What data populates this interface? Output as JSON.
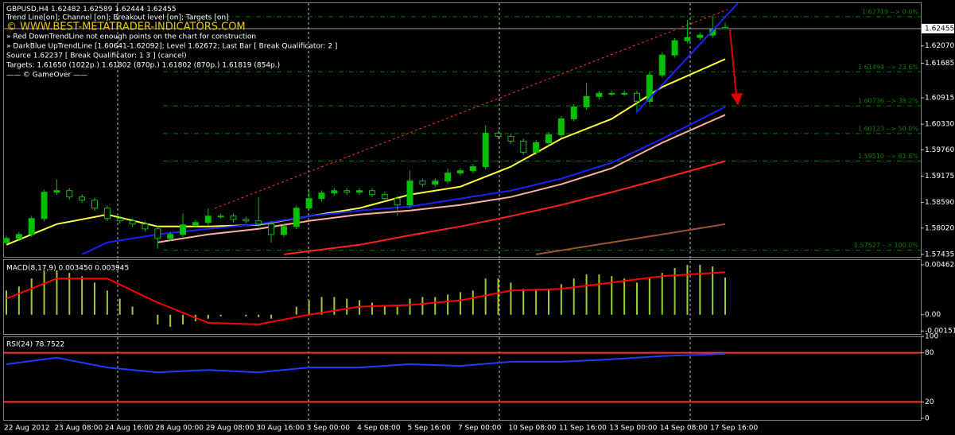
{
  "panel": {
    "lines": [
      "Trend Line[on]; Channel [on]; Breakout level [on]; Targets [on]",
      "» Red DownTrendLine not enough points on the chart for construction",
      "» DarkBlue UpTrendLine [1.60641-1.62092]; Level 1.62672; Last Bar [ Break Qualificator: 2 ]",
      "Source 1.62237 [ Break Qualificator: 1 3 ] (cancel)",
      "Targets: 1.61650 (1022p.) 1.61802 (870p.) 1.61802 (870p.) 1.61819 (854p.)",
      "—— © GameOver ——"
    ],
    "watermark": "© WWW.BEST-METATRADER-INDICATORS.COM"
  },
  "chart_data": [
    {
      "type": "candlestick",
      "title": "GBPUSD,H4",
      "up_color": "#00c000",
      "down_color": "#000000",
      "categories": [
        "22 Aug 2012",
        null,
        null,
        null,
        "23 Aug 08:00",
        null,
        null,
        null,
        "24 Aug 16:00",
        null,
        null,
        null,
        "28 Aug 00:00",
        null,
        null,
        null,
        "29 Aug 08:00",
        null,
        null,
        null,
        "30 Aug 16:00",
        null,
        null,
        null,
        "3 Sep 00:00",
        null,
        null,
        null,
        "4 Sep 08:00",
        null,
        null,
        null,
        "5 Sep 16:00",
        null,
        null,
        null,
        "7 Sep 00:00",
        null,
        null,
        null,
        "10 Sep 08:00",
        null,
        null,
        null,
        "11 Sep 16:00",
        null,
        null,
        null,
        "13 Sep 00:00",
        null,
        null,
        null,
        "14 Sep 08:00",
        null,
        null,
        null,
        "17 Sep 16:00",
        null
      ],
      "open": [
        1.577,
        1.5779,
        1.57878,
        1.58233,
        1.58818,
        1.58853,
        1.58711,
        1.5864,
        1.58463,
        1.58233,
        1.5818,
        1.58109,
        1.58002,
        1.5779,
        1.57878,
        1.58091,
        1.58144,
        1.58286,
        1.58286,
        1.58215,
        1.5818,
        1.58109,
        1.57878,
        1.58055,
        1.58463,
        1.58676,
        1.588,
        1.58853,
        1.58818,
        1.58853,
        1.58765,
        1.58676,
        1.58534,
        1.59066,
        1.58995,
        1.59066,
        1.59243,
        1.59296,
        1.59385,
        1.60129,
        1.60059,
        1.59952,
        1.59704,
        1.59917,
        1.60094,
        1.60449,
        1.60714,
        1.60945,
        1.61016,
        1.61016,
        1.61016,
        1.60839,
        1.61424,
        1.61867,
        1.62186,
        1.62257,
        1.6231,
        1.62482
      ],
      "high": [
        1.5785,
        1.57938,
        1.58293,
        1.58878,
        1.591,
        1.58913,
        1.58771,
        1.587,
        1.58523,
        1.58293,
        1.5824,
        1.58169,
        1.58062,
        1.57938,
        1.5834,
        1.58204,
        1.5846,
        1.58346,
        1.58346,
        1.58275,
        1.587,
        1.58169,
        1.58115,
        1.58523,
        1.589,
        1.5886,
        1.58913,
        1.58913,
        1.58913,
        1.58913,
        1.58825,
        1.58736,
        1.593,
        1.59126,
        1.59126,
        1.5935,
        1.59356,
        1.59445,
        1.603,
        1.60189,
        1.60119,
        1.60012,
        1.59977,
        1.60154,
        1.60509,
        1.60774,
        1.6125,
        1.61076,
        1.61076,
        1.61076,
        1.61076,
        1.61484,
        1.61927,
        1.62246,
        1.6265,
        1.6237,
        1.62719,
        1.62589
      ],
      "low": [
        1.5764,
        1.5773,
        1.57818,
        1.58173,
        1.58758,
        1.58651,
        1.5858,
        1.58403,
        1.58173,
        1.5812,
        1.58049,
        1.57942,
        1.5756,
        1.5773,
        1.57818,
        1.58031,
        1.58084,
        1.58226,
        1.58155,
        1.5812,
        1.58049,
        1.577,
        1.57818,
        1.57995,
        1.58403,
        1.58616,
        1.5874,
        1.58758,
        1.58758,
        1.58705,
        1.58616,
        1.583,
        1.58474,
        1.58935,
        1.58935,
        1.59006,
        1.59183,
        1.59236,
        1.59325,
        1.59999,
        1.59892,
        1.59644,
        1.59644,
        1.59857,
        1.60034,
        1.60389,
        1.60654,
        1.60885,
        1.60956,
        1.60956,
        1.606,
        1.60779,
        1.61364,
        1.61807,
        1.62126,
        1.62197,
        1.6225,
        1.62444
      ],
      "close": [
        1.5779,
        1.57878,
        1.58233,
        1.58818,
        1.58853,
        1.58711,
        1.5864,
        1.58463,
        1.58233,
        1.5818,
        1.58109,
        1.58002,
        1.5779,
        1.57878,
        1.58091,
        1.58144,
        1.58286,
        1.58286,
        1.58215,
        1.5818,
        1.58109,
        1.57878,
        1.58055,
        1.58463,
        1.58676,
        1.588,
        1.58853,
        1.58818,
        1.58853,
        1.58765,
        1.58676,
        1.58534,
        1.59066,
        1.58995,
        1.59066,
        1.59243,
        1.59296,
        1.59385,
        1.60129,
        1.60059,
        1.59952,
        1.59704,
        1.59917,
        1.60094,
        1.60449,
        1.60714,
        1.60945,
        1.61016,
        1.61016,
        1.61016,
        1.60839,
        1.61424,
        1.61867,
        1.62186,
        1.62257,
        1.6231,
        1.62434,
        1.62455
      ],
      "ylim": [
        1.5738,
        1.6302
      ],
      "yticks": [
        {
          "value": 1.6207,
          "label": "1.62070"
        },
        1.61685,
        1.60915,
        {
          "value": 1.6033,
          "label": "1.60330"
        },
        {
          "value": 1.5976,
          "label": "1.59760"
        },
        1.59175,
        {
          "value": 1.5859,
          "label": "1.58590"
        },
        {
          "value": 1.5802,
          "label": "1.58020"
        },
        1.57435
      ],
      "fib_color": "#008000",
      "fib_levels": [
        {
          "value": 1.62719,
          "label": "1.62719 --> 0.0%"
        },
        {
          "value": 1.61494,
          "label": "1.61494 --> 23.6%"
        },
        {
          "value": 1.60736,
          "label": "1.60736 --> 38.2%"
        },
        {
          "value": 1.60123,
          "label": "1.60123 --> 50.0%"
        },
        {
          "value": 1.5951,
          "label": "1.59510 --> 61.8%"
        },
        {
          "value": 1.57527,
          "label": "1.57527 --> 100.0%"
        }
      ],
      "series": [
        {
          "color": "#ffff40",
          "x": [
            0,
            4,
            8,
            12,
            16,
            20,
            24,
            28,
            32,
            36,
            40,
            44,
            48,
            52,
            57
          ],
          "values": [
            1.57648,
            1.58109,
            1.58321,
            1.58055,
            1.58055,
            1.58091,
            1.58286,
            1.58463,
            1.58764,
            1.58942,
            1.59385,
            1.60005,
            1.60448,
            1.61157,
            1.61777
          ]
        },
        {
          "color": "#ffb0a0",
          "x": [
            12,
            16,
            20,
            24,
            28,
            32,
            36,
            40,
            44,
            48,
            52,
            57
          ],
          "values": [
            1.57701,
            1.57878,
            1.58002,
            1.58179,
            1.58321,
            1.5841,
            1.58534,
            1.58711,
            1.58995,
            1.59349,
            1.59917,
            1.60537
          ]
        },
        {
          "color": "#2020ff",
          "x": [
            6,
            8,
            12,
            16,
            20,
            24,
            28,
            32,
            36,
            40,
            44,
            48,
            52,
            57
          ],
          "values": [
            1.57435,
            1.57701,
            1.57878,
            1.58002,
            1.58109,
            1.58286,
            1.5841,
            1.58498,
            1.58675,
            1.58853,
            1.59119,
            1.59473,
            1.60005,
            1.60714
          ]
        },
        {
          "color": "#ff2020",
          "x": [
            22,
            28,
            32,
            36,
            40,
            44,
            48,
            52,
            57
          ],
          "values": [
            1.57435,
            1.57648,
            1.5786,
            1.58055,
            1.58286,
            1.58534,
            1.58818,
            1.59119,
            1.59509
          ]
        },
        {
          "color": "#a0522d",
          "x": [
            42,
            48,
            52,
            57
          ],
          "values": [
            1.57435,
            1.57701,
            1.57878,
            1.58109
          ]
        }
      ]
    },
    {
      "type": "macd",
      "title": "MACD(8,17,9) 0.003450 0.003945",
      "color": "#9acd32",
      "values": [
        0.00224,
        0.00261,
        0.00336,
        0.0041,
        0.0041,
        0.00388,
        0.00358,
        0.00298,
        0.00224,
        0.00149,
        0.00075,
        0,
        -0.0009,
        -0.00112,
        -0.0009,
        -0.0006,
        -0.00037,
        -0.00015,
        0,
        -0.00015,
        -0.00022,
        -0.00037,
        0,
        0.00075,
        0.00134,
        0.00164,
        0.00164,
        0.00149,
        0.00134,
        0.00112,
        0.0009,
        0.00075,
        0.00149,
        0.00164,
        0.00164,
        0.00187,
        0.00209,
        0.00224,
        0.00336,
        0.00336,
        0.00298,
        0.00239,
        0.00224,
        0.00239,
        0.00283,
        0.00336,
        0.00373,
        0.00373,
        0.00358,
        0.00336,
        0.00298,
        0.00336,
        0.00388,
        0.00433,
        0.00462,
        0.00462,
        0.00448,
        0.00345
      ],
      "series": [
        {
          "color": "#ff0000",
          "x": [
            0,
            4,
            8,
            12,
            16,
            20,
            24,
            28,
            32,
            36,
            40,
            44,
            48,
            52,
            57
          ],
          "values": [
            0.00149,
            0.00336,
            0.00336,
            0.00112,
            -0.00075,
            -0.0009,
            0,
            0.00075,
            0.0009,
            0.00134,
            0.00224,
            0.00239,
            0.00298,
            0.00358,
            0.003945
          ]
        }
      ],
      "ylim": [
        -0.00179,
        0.00507
      ],
      "yticks": [
        0.004624,
        {
          "value": 0,
          "label": "0.00"
        },
        -0.00151
      ]
    },
    {
      "type": "line",
      "title": "RSI(24) 78.7522",
      "series": [
        {
          "color": "#1e3cff",
          "x": [
            0,
            4,
            8,
            12,
            16,
            20,
            24,
            28,
            32,
            36,
            40,
            44,
            48,
            52,
            57
          ],
          "values": [
            66,
            74,
            62,
            56,
            59,
            56,
            62,
            62,
            66,
            64,
            69,
            69,
            72,
            76,
            78.7522
          ]
        }
      ],
      "ylim": [
        0,
        100
      ],
      "yticks": [
        0,
        20,
        80,
        100
      ],
      "levels": [
        20,
        80
      ],
      "level_color": "#ff3030"
    }
  ]
}
